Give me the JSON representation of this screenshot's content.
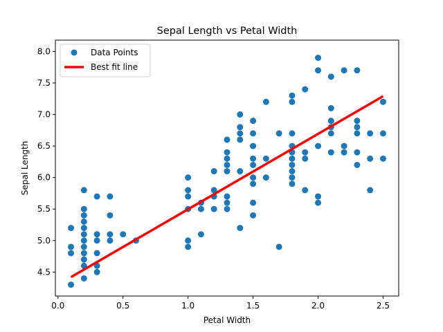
{
  "chart_data": {
    "type": "scatter",
    "title": "Sepal Length vs Petal Width",
    "xlabel": "Petal Width",
    "ylabel": "Sepal Length",
    "xlim": [
      -0.02,
      2.62
    ],
    "ylim": [
      4.12,
      8.18
    ],
    "xticks": [
      0.0,
      0.5,
      1.0,
      1.5,
      2.0,
      2.5
    ],
    "xtick_labels": [
      "0.0",
      "0.5",
      "1.0",
      "1.5",
      "2.0",
      "2.5"
    ],
    "yticks": [
      4.5,
      5.0,
      5.5,
      6.0,
      6.5,
      7.0,
      7.5,
      8.0
    ],
    "ytick_labels": [
      "4.5",
      "5.0",
      "5.5",
      "6.0",
      "6.5",
      "7.0",
      "7.5",
      "8.0"
    ],
    "grid": false,
    "legend": {
      "location": "upper-left",
      "entries": [
        {
          "label": "Data Points",
          "marker": "circle",
          "color": "#1f77b4"
        },
        {
          "label": "Best fit line",
          "marker": "line",
          "color": "#ff0000"
        }
      ]
    },
    "series": [
      {
        "name": "Data Points",
        "kind": "scatter",
        "color": "#1f77b4",
        "points": [
          [
            0.1,
            4.9
          ],
          [
            0.1,
            4.8
          ],
          [
            0.1,
            4.3
          ],
          [
            0.1,
            5.2
          ],
          [
            0.2,
            4.4
          ],
          [
            0.2,
            4.6
          ],
          [
            0.2,
            4.7
          ],
          [
            0.2,
            4.8
          ],
          [
            0.2,
            4.9
          ],
          [
            0.2,
            5.0
          ],
          [
            0.2,
            5.1
          ],
          [
            0.2,
            5.2
          ],
          [
            0.2,
            5.3
          ],
          [
            0.2,
            5.4
          ],
          [
            0.2,
            5.5
          ],
          [
            0.2,
            5.8
          ],
          [
            0.3,
            4.5
          ],
          [
            0.3,
            4.6
          ],
          [
            0.3,
            4.8
          ],
          [
            0.3,
            5.0
          ],
          [
            0.3,
            5.1
          ],
          [
            0.3,
            5.7
          ],
          [
            0.4,
            5.0
          ],
          [
            0.4,
            5.1
          ],
          [
            0.4,
            5.4
          ],
          [
            0.4,
            5.7
          ],
          [
            0.5,
            5.1
          ],
          [
            0.6,
            5.0
          ],
          [
            1.0,
            4.9
          ],
          [
            1.0,
            5.0
          ],
          [
            1.0,
            5.5
          ],
          [
            1.0,
            5.7
          ],
          [
            1.0,
            5.8
          ],
          [
            1.0,
            6.0
          ],
          [
            1.1,
            5.1
          ],
          [
            1.1,
            5.5
          ],
          [
            1.1,
            5.6
          ],
          [
            1.2,
            5.5
          ],
          [
            1.2,
            5.7
          ],
          [
            1.2,
            5.8
          ],
          [
            1.2,
            6.1
          ],
          [
            1.3,
            5.5
          ],
          [
            1.3,
            5.6
          ],
          [
            1.3,
            5.7
          ],
          [
            1.3,
            6.1
          ],
          [
            1.3,
            6.2
          ],
          [
            1.3,
            6.3
          ],
          [
            1.3,
            6.4
          ],
          [
            1.3,
            6.6
          ],
          [
            1.4,
            5.2
          ],
          [
            1.4,
            6.1
          ],
          [
            1.4,
            6.6
          ],
          [
            1.4,
            6.7
          ],
          [
            1.4,
            6.8
          ],
          [
            1.4,
            7.0
          ],
          [
            1.5,
            5.4
          ],
          [
            1.5,
            5.6
          ],
          [
            1.5,
            5.9
          ],
          [
            1.5,
            6.0
          ],
          [
            1.5,
            6.2
          ],
          [
            1.5,
            6.3
          ],
          [
            1.5,
            6.5
          ],
          [
            1.5,
            6.7
          ],
          [
            1.5,
            6.9
          ],
          [
            1.6,
            6.0
          ],
          [
            1.6,
            6.3
          ],
          [
            1.6,
            7.2
          ],
          [
            1.7,
            4.9
          ],
          [
            1.7,
            6.7
          ],
          [
            1.8,
            5.9
          ],
          [
            1.8,
            6.0
          ],
          [
            1.8,
            6.1
          ],
          [
            1.8,
            6.2
          ],
          [
            1.8,
            6.3
          ],
          [
            1.8,
            6.4
          ],
          [
            1.8,
            6.5
          ],
          [
            1.8,
            6.7
          ],
          [
            1.8,
            7.2
          ],
          [
            1.8,
            7.3
          ],
          [
            1.9,
            5.8
          ],
          [
            1.9,
            6.3
          ],
          [
            1.9,
            6.4
          ],
          [
            1.9,
            7.4
          ],
          [
            2.0,
            5.6
          ],
          [
            2.0,
            5.7
          ],
          [
            2.0,
            6.5
          ],
          [
            2.0,
            7.7
          ],
          [
            2.0,
            7.9
          ],
          [
            2.1,
            6.4
          ],
          [
            2.1,
            6.7
          ],
          [
            2.1,
            6.8
          ],
          [
            2.1,
            6.9
          ],
          [
            2.1,
            7.1
          ],
          [
            2.1,
            7.6
          ],
          [
            2.2,
            6.4
          ],
          [
            2.2,
            6.5
          ],
          [
            2.2,
            7.7
          ],
          [
            2.3,
            6.2
          ],
          [
            2.3,
            6.4
          ],
          [
            2.3,
            6.7
          ],
          [
            2.3,
            6.8
          ],
          [
            2.3,
            6.9
          ],
          [
            2.3,
            7.7
          ],
          [
            2.4,
            5.8
          ],
          [
            2.4,
            6.3
          ],
          [
            2.4,
            6.7
          ],
          [
            2.5,
            6.3
          ],
          [
            2.5,
            6.7
          ],
          [
            2.5,
            7.2
          ]
        ]
      },
      {
        "name": "Best fit line",
        "kind": "line",
        "color": "#ff0000",
        "x": [
          0.1,
          2.5
        ],
        "y": [
          4.42,
          7.29
        ]
      }
    ]
  }
}
